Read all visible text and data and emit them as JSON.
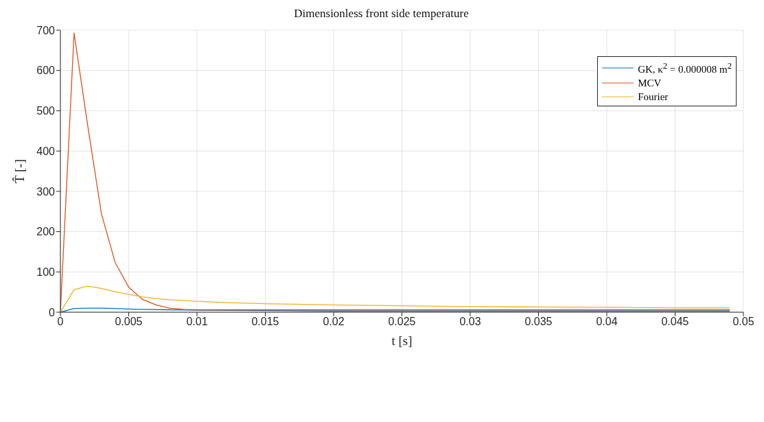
{
  "chart_data": {
    "type": "line",
    "title": "Dimensionless front side temperature",
    "xlabel": "t [s]",
    "ylabel": "T̂ [-]",
    "xlim": [
      0,
      0.05
    ],
    "xticks": [
      0,
      0.005,
      0.01,
      0.015,
      0.02,
      0.025,
      0.03,
      0.035,
      0.04,
      0.045,
      0.05
    ],
    "ylim": [
      0,
      700
    ],
    "yticks": [
      0,
      100,
      200,
      300,
      400,
      500,
      600,
      700
    ],
    "grid": true,
    "legend": "top right",
    "marker": "none",
    "line_style": "solid",
    "series": [
      {
        "name": "GK, κ$^{2}$ = 0.000008 m$^{2}$",
        "color": "#0072bd",
        "x": [
          0,
          0.001,
          0.002,
          0.003,
          0.004,
          0.005,
          0.006,
          0.008,
          0.01,
          0.015,
          0.02,
          0.03,
          0.04,
          0.049
        ],
        "values": [
          0,
          9,
          10,
          10,
          9,
          8,
          7,
          6,
          5,
          4,
          3,
          3,
          3,
          3
        ]
      },
      {
        "name": "MCV",
        "color": "#d95319",
        "x": [
          0,
          0.001,
          0.002,
          0.003,
          0.004,
          0.005,
          0.006,
          0.007,
          0.008,
          0.009,
          0.01,
          0.012,
          0.015,
          0.02,
          0.03,
          0.04,
          0.049
        ],
        "values": [
          0,
          693,
          463,
          245,
          124,
          62,
          32,
          18,
          10,
          7,
          6,
          6,
          6,
          6,
          6,
          6,
          6
        ]
      },
      {
        "name": "Fourier",
        "color": "#edb120",
        "x": [
          0,
          0.001,
          0.002,
          0.003,
          0.004,
          0.005,
          0.006,
          0.007,
          0.008,
          0.009,
          0.01,
          0.012,
          0.015,
          0.02,
          0.025,
          0.03,
          0.035,
          0.04,
          0.045,
          0.049
        ],
        "values": [
          0,
          56,
          65,
          59,
          51,
          44,
          38,
          34,
          31,
          29,
          27,
          24,
          21,
          18,
          16,
          14,
          13,
          12,
          11,
          11
        ]
      }
    ]
  }
}
